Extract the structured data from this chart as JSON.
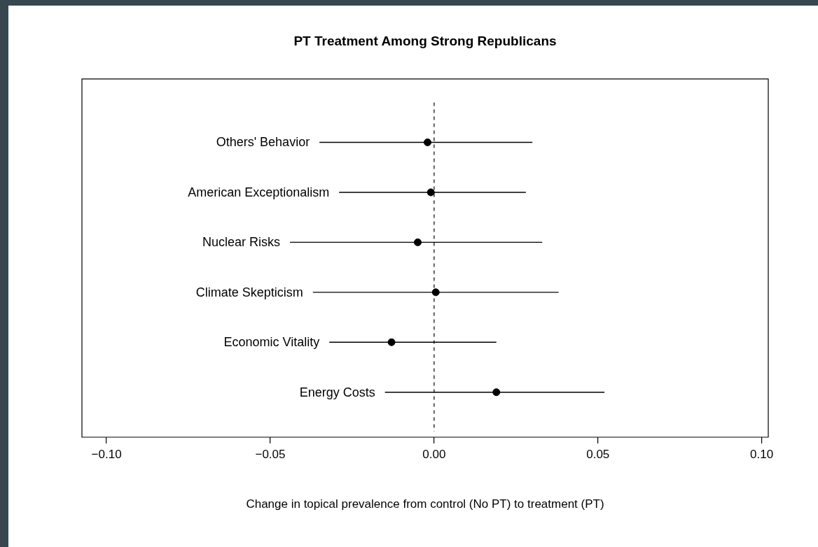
{
  "chart_data": {
    "type": "scatter",
    "orientation": "horizontal",
    "title": "PT Treatment Among Strong Republicans",
    "xlabel": "Change in topical prevalence from control (No PT) to treatment (PT)",
    "categories": [
      "Others' Behavior",
      "American Exceptionalism",
      "Nuclear Risks",
      "Climate Skepticism",
      "Economic Vitality",
      "Energy Costs"
    ],
    "values": [
      -0.002,
      -0.001,
      -0.005,
      0.0005,
      -0.013,
      0.019
    ],
    "errors": [
      [
        -0.035,
        0.03
      ],
      [
        -0.029,
        0.028
      ],
      [
        -0.044,
        0.033
      ],
      [
        -0.037,
        0.038
      ],
      [
        -0.032,
        0.019
      ],
      [
        -0.015,
        0.052
      ]
    ],
    "color": "#000000",
    "marker": "circle",
    "xlim": [
      -0.1075,
      0.102
    ],
    "xticks": [
      {
        "value": -0.1,
        "label": "−0.10"
      },
      {
        "value": -0.05,
        "label": "−0.05"
      },
      {
        "value": 0,
        "label": "0.00"
      },
      {
        "value": 0.05,
        "label": "0.05"
      },
      {
        "value": 0.1,
        "label": "0.10"
      }
    ],
    "ref_lines": [
      {
        "axis": "x",
        "value": 0,
        "line_style": "dashed",
        "color": "#000000"
      }
    ],
    "grid": false,
    "legend": false
  }
}
